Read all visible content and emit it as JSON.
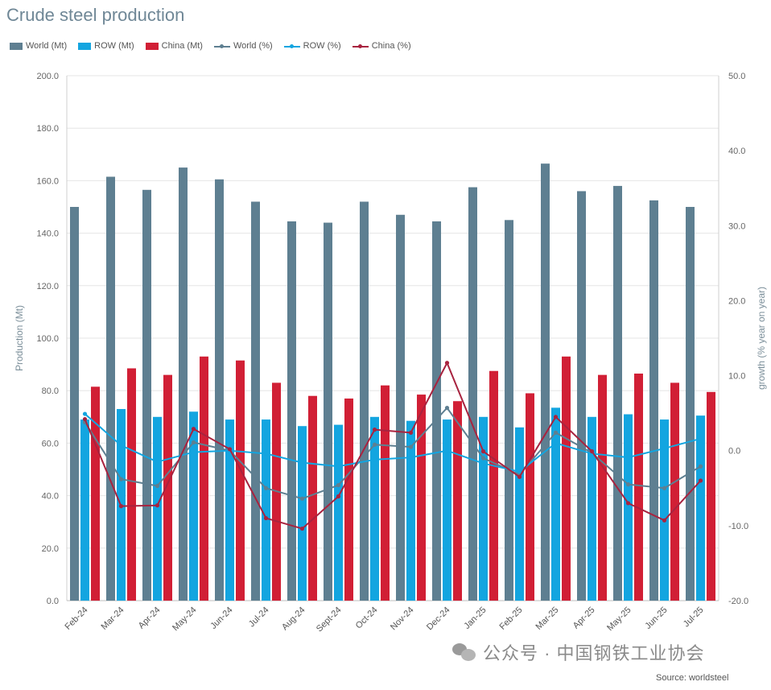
{
  "title": "Crude steel production",
  "legend": [
    {
      "label": "World (Mt)",
      "kind": "bar",
      "color": "#5e7f91"
    },
    {
      "label": "ROW (Mt)",
      "kind": "bar",
      "color": "#13a5e0"
    },
    {
      "label": "China (Mt)",
      "kind": "bar",
      "color": "#d11f35"
    },
    {
      "label": "World (%)",
      "kind": "line",
      "color": "#5e7f91"
    },
    {
      "label": "ROW (%)",
      "kind": "line",
      "color": "#13a5e0"
    },
    {
      "label": "China (%)",
      "kind": "line",
      "color": "#a8233f"
    }
  ],
  "watermark": "公众号 · 中国钢铁工业协会",
  "source": "Source: worldsteel",
  "chart_data": {
    "type": "bar",
    "categories": [
      "Feb-24",
      "Mar-24",
      "Apr-24",
      "May-24",
      "Jun-24",
      "Jul-24",
      "Aug-24",
      "Sept-24",
      "Oct-24",
      "Nov-24",
      "Dec-24",
      "Jan-25",
      "Feb-25",
      "Mar-25",
      "Apr-25",
      "May-25",
      "Jun-25",
      "Jul-25"
    ],
    "ylabel": "Production (Mt)",
    "y2label": "growth (% year on year)",
    "ylim": [
      0,
      200
    ],
    "y2lim": [
      -20,
      50
    ],
    "yticks": [
      "0.0",
      "20.0",
      "40.0",
      "60.0",
      "80.0",
      "100.0",
      "120.0",
      "140.0",
      "160.0",
      "180.0",
      "200.0"
    ],
    "y2ticks": [
      "-20.0",
      "-10.0",
      "0.0",
      "10.0",
      "20.0",
      "30.0",
      "40.0",
      "50.0"
    ],
    "grid": true,
    "legend_position": "top-left",
    "bar_series": [
      {
        "name": "World (Mt)",
        "color": "#5e7f91",
        "values": [
          150.0,
          161.5,
          156.5,
          165.0,
          160.5,
          152.0,
          144.5,
          144.0,
          152.0,
          147.0,
          144.5,
          157.5,
          145.0,
          166.5,
          156.0,
          158.0,
          152.5,
          150.0
        ]
      },
      {
        "name": "ROW (Mt)",
        "color": "#13a5e0",
        "values": [
          69.0,
          73.0,
          70.0,
          72.0,
          69.0,
          69.0,
          66.5,
          67.0,
          70.0,
          68.5,
          69.0,
          70.0,
          66.0,
          73.5,
          70.0,
          71.0,
          69.0,
          70.5
        ]
      },
      {
        "name": "China (Mt)",
        "color": "#d11f35",
        "values": [
          81.5,
          88.5,
          86.0,
          93.0,
          91.5,
          83.0,
          78.0,
          77.0,
          82.0,
          78.5,
          76.0,
          87.5,
          79.0,
          93.0,
          86.0,
          86.5,
          83.0,
          79.5
        ]
      }
    ],
    "line_series": [
      {
        "name": "World (%)",
        "color": "#5e7f91",
        "values": [
          3.8,
          -3.8,
          -4.7,
          1.1,
          0.0,
          -5.0,
          -6.4,
          -4.6,
          0.8,
          0.5,
          5.7,
          -1.0,
          -3.2,
          2.4,
          -0.3,
          -4.5,
          -5.0,
          -2.1
        ]
      },
      {
        "name": "ROW (%)",
        "color": "#13a5e0",
        "values": [
          4.9,
          0.7,
          -1.5,
          -0.2,
          0.0,
          -0.4,
          -1.6,
          -2.1,
          -1.2,
          -0.9,
          0.0,
          -1.7,
          -2.8,
          1.0,
          -0.4,
          -0.9,
          0.3,
          1.6
        ]
      },
      {
        "name": "China (%)",
        "color": "#a8233f",
        "values": [
          4.2,
          -7.4,
          -7.3,
          2.9,
          0.2,
          -9.0,
          -10.4,
          -6.1,
          2.8,
          2.4,
          11.7,
          -0.1,
          -3.5,
          4.5,
          -0.1,
          -7.0,
          -9.3,
          -4.0
        ]
      }
    ]
  }
}
